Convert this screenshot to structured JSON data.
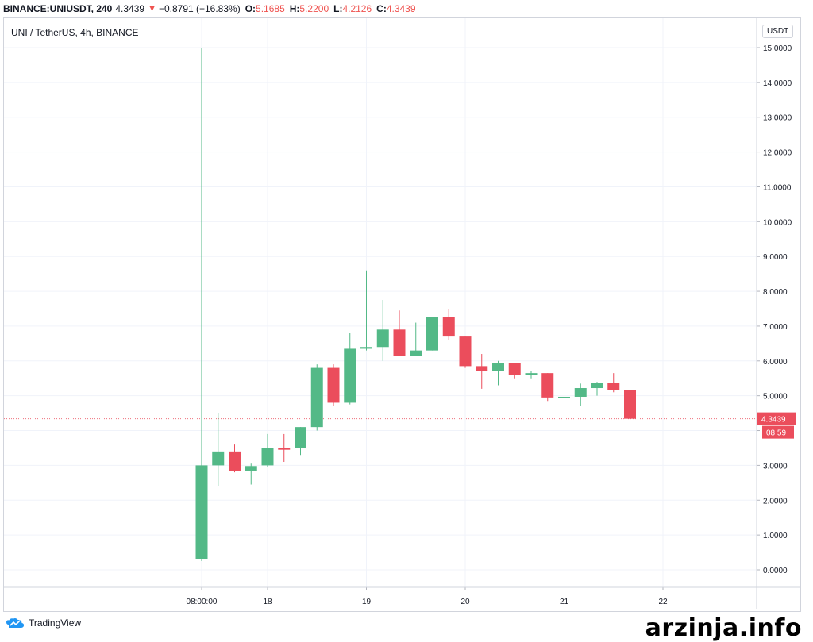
{
  "header": {
    "symbol": "BINANCE:UNIUSDT, 240",
    "price": "4.3439",
    "change": "−0.8791 (−16.83%)",
    "o_label": "O:",
    "o_value": "5.1685",
    "h_label": "H:",
    "h_value": "5.2200",
    "l_label": "L:",
    "l_value": "4.2126",
    "c_label": "C:",
    "c_value": "4.3439"
  },
  "legend_title": "UNI / TetherUS, 4h, BINANCE",
  "currency_button": "USDT",
  "colors": {
    "up": "#53b987",
    "down": "#eb4d5c",
    "grid": "#f0f3fa",
    "axis_text": "#131722"
  },
  "chart_data": {
    "type": "candlestick",
    "ylim": [
      -0.5,
      15.3
    ],
    "yticks": [
      "15.0000",
      "14.0000",
      "13.0000",
      "12.0000",
      "11.0000",
      "10.0000",
      "9.0000",
      "8.0000",
      "7.0000",
      "6.0000",
      "5.0000",
      "4.0000",
      "3.0000",
      "2.0000",
      "1.0000",
      "0.0000"
    ],
    "xticks": [
      {
        "label": "08:00:00",
        "t": 0
      },
      {
        "label": "18",
        "t": 4
      },
      {
        "label": "19",
        "t": 10
      },
      {
        "label": "20",
        "t": 16
      },
      {
        "label": "21",
        "t": 22
      },
      {
        "label": "22",
        "t": 28
      }
    ],
    "candles": [
      {
        "t": 0,
        "o": 0.3,
        "h": 15.0,
        "l": 0.25,
        "c": 3.0
      },
      {
        "t": 1,
        "o": 3.0,
        "h": 4.5,
        "l": 2.4,
        "c": 3.4
      },
      {
        "t": 2,
        "o": 3.4,
        "h": 3.6,
        "l": 2.8,
        "c": 2.85
      },
      {
        "t": 3,
        "o": 2.85,
        "h": 3.05,
        "l": 2.45,
        "c": 2.98
      },
      {
        "t": 4,
        "o": 3.0,
        "h": 3.9,
        "l": 2.95,
        "c": 3.5
      },
      {
        "t": 5,
        "o": 3.5,
        "h": 3.9,
        "l": 3.1,
        "c": 3.45
      },
      {
        "t": 6,
        "o": 3.5,
        "h": 4.1,
        "l": 3.3,
        "c": 4.1
      },
      {
        "t": 7,
        "o": 4.1,
        "h": 5.9,
        "l": 4.0,
        "c": 5.8
      },
      {
        "t": 8,
        "o": 5.8,
        "h": 5.9,
        "l": 4.7,
        "c": 4.8
      },
      {
        "t": 9,
        "o": 4.8,
        "h": 6.8,
        "l": 4.75,
        "c": 6.35
      },
      {
        "t": 10,
        "o": 6.35,
        "h": 8.6,
        "l": 6.3,
        "c": 6.4
      },
      {
        "t": 11,
        "o": 6.4,
        "h": 7.75,
        "l": 6.0,
        "c": 6.9
      },
      {
        "t": 12,
        "o": 6.9,
        "h": 7.45,
        "l": 6.15,
        "c": 6.15
      },
      {
        "t": 13,
        "o": 6.15,
        "h": 7.1,
        "l": 6.15,
        "c": 6.3
      },
      {
        "t": 14,
        "o": 6.3,
        "h": 7.25,
        "l": 6.3,
        "c": 7.25
      },
      {
        "t": 15,
        "o": 7.25,
        "h": 7.5,
        "l": 6.6,
        "c": 6.7
      },
      {
        "t": 16,
        "o": 6.7,
        "h": 6.7,
        "l": 5.8,
        "c": 5.85
      },
      {
        "t": 17,
        "o": 5.85,
        "h": 6.2,
        "l": 5.2,
        "c": 5.7
      },
      {
        "t": 18,
        "o": 5.7,
        "h": 6.0,
        "l": 5.3,
        "c": 5.95
      },
      {
        "t": 19,
        "o": 5.95,
        "h": 5.95,
        "l": 5.5,
        "c": 5.6
      },
      {
        "t": 20,
        "o": 5.6,
        "h": 5.7,
        "l": 5.5,
        "c": 5.65
      },
      {
        "t": 21,
        "o": 5.65,
        "h": 5.65,
        "l": 4.85,
        "c": 4.95
      },
      {
        "t": 22,
        "o": 4.95,
        "h": 5.1,
        "l": 4.65,
        "c": 4.97
      },
      {
        "t": 23,
        "o": 4.97,
        "h": 5.35,
        "l": 4.7,
        "c": 5.22
      },
      {
        "t": 24,
        "o": 5.22,
        "h": 5.4,
        "l": 5.0,
        "c": 5.38
      },
      {
        "t": 25,
        "o": 5.38,
        "h": 5.65,
        "l": 5.1,
        "c": 5.17
      },
      {
        "t": 26,
        "o": 5.17,
        "h": 5.22,
        "l": 4.21,
        "c": 4.34
      }
    ],
    "last_price_label": "4.3439",
    "countdown_label": "08:59"
  },
  "branding": {
    "logo_text": "TradingView",
    "watermark": "arzinja.info"
  }
}
